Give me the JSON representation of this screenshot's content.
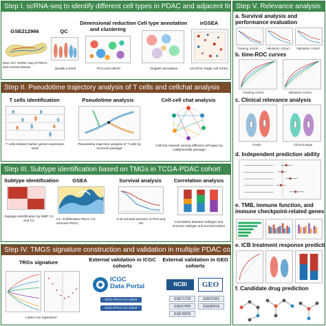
{
  "steps": {
    "s1": {
      "title": "Step I. scRNA-seq to identify different cell types in PDAC and adjacent tissues",
      "dataset": "GSE212966",
      "dataset_caption": "Nine 10× scRNA-seq of PDAC and normal tissues",
      "qc": "QC",
      "qc_caption": "Quality control",
      "dimred": "Dimensional reduction and clustering",
      "dimred_caption": "PCA and UMAP",
      "annot": "Cell type annotation",
      "annot_caption": "SingleR annotation",
      "irgsea": "irGSEA",
      "irgsea_caption": "UCell for single cell GSEA"
    },
    "s2": {
      "title": "Step II. Pseudotime trajectory analysis of T cells and cellchat analysis",
      "tcell": "T cells identification",
      "tcell_caption": "T cells-related marker genes expression level",
      "pseudo": "Pseudotime analysis",
      "pseudo_caption": "Pseudotime trajectory analysis of T cells by monocle package",
      "chat": "Cell-cell chat analysis",
      "chat_caption": "Cellchat network among different cell types by CellphoneDB package"
    },
    "s3": {
      "title": "Step III. Subtype identification based on TMGs in TCGA-PDAC cohort",
      "subtype": "Subtype identification",
      "subtype_caption": "Suptype identification by NMF C1 and C2",
      "gsea": "GSEA",
      "gsea_caption": "C1: Proliferative PDAC C2: Immune PDAC",
      "surv": "Survival analysis",
      "surv_caption": "K-M survival survives of PFS and OS",
      "corr": "Correlation analysis",
      "corr_caption": "Correlation between subtype and immune subtype and survival status"
    },
    "s4": {
      "title": "Step IV. TMGS signature construction and validation in multiple PDAC cohorts",
      "trg": "TRGs signature",
      "trg_caption": "Lasso-cox regression",
      "icgc": "External validation in ICGC cohorts",
      "icgc_logo_top": "ICGC",
      "icgc_logo_bottom": "Data Portal",
      "icgc_cohorts": [
        "ICGC-PACA-CA cohort",
        "ICGC-PACA-AU cohort"
      ],
      "geo": "External validation in GEO cohorts",
      "ncbi": "NCBI",
      "geo_logo": "GEO",
      "geo_cohorts": [
        "GSE71729",
        "GSE21501",
        "GSE57495",
        "GSE85916",
        "GSE78229"
      ]
    },
    "s5": {
      "title": "Step V. Relevance analysis",
      "a": "a. Survival analysis and performance evaluation",
      "a_labels": [
        "Training cohort",
        "Validation cohort",
        "Validation cohort"
      ],
      "b": "b. time-ROC curves",
      "b_labels": [
        "Training cohort",
        "Validation cohort"
      ],
      "c": "c. Clinical relevance analysis",
      "c_labels": [
        "Grade",
        "Clinical stage"
      ],
      "d": "d. Independent prediction ability",
      "e": "e. TMB, immune function, and immune checkpoint-related genes",
      "f": "e. ICB treatment response prediction",
      "g": "f. Candidate drug prediction"
    }
  },
  "colors": {
    "green_header": "#3e8a4e",
    "brown_header": "#7a4a2a",
    "frame": "#2b6f3a"
  }
}
